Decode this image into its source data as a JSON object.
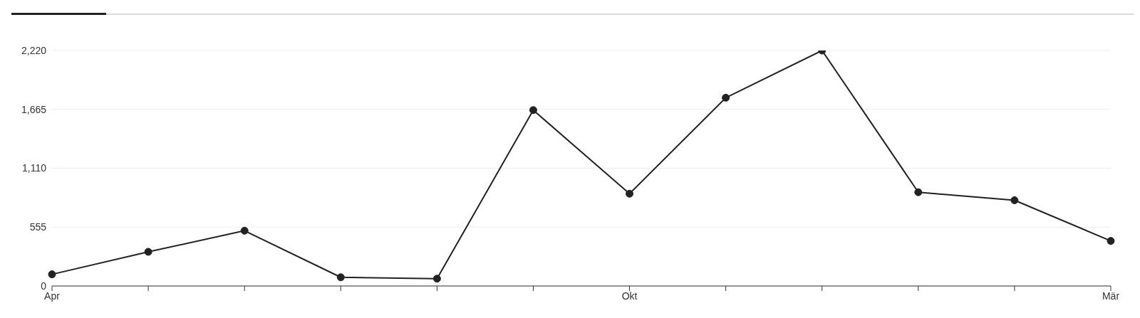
{
  "chart_data": {
    "type": "line",
    "categories": [
      "Apr",
      null,
      null,
      null,
      null,
      null,
      "Okt",
      null,
      null,
      null,
      null,
      "Mär"
    ],
    "series": [
      {
        "color": "#222222",
        "values": [
          110,
          322,
          521,
          82,
          69,
          1658,
          870,
          1775,
          2220,
          884,
          808,
          425
        ]
      }
    ],
    "ylim": [
      0,
      2220
    ],
    "yticks": [
      0,
      {
        "value": 555,
        "label": "555"
      },
      {
        "value": 1110,
        "label": "1,110"
      },
      {
        "value": 1665,
        "label": "1,665"
      },
      {
        "value": 2220,
        "label": "2,220"
      }
    ],
    "grid": "y",
    "marker": "circle",
    "line_style": "solid"
  }
}
